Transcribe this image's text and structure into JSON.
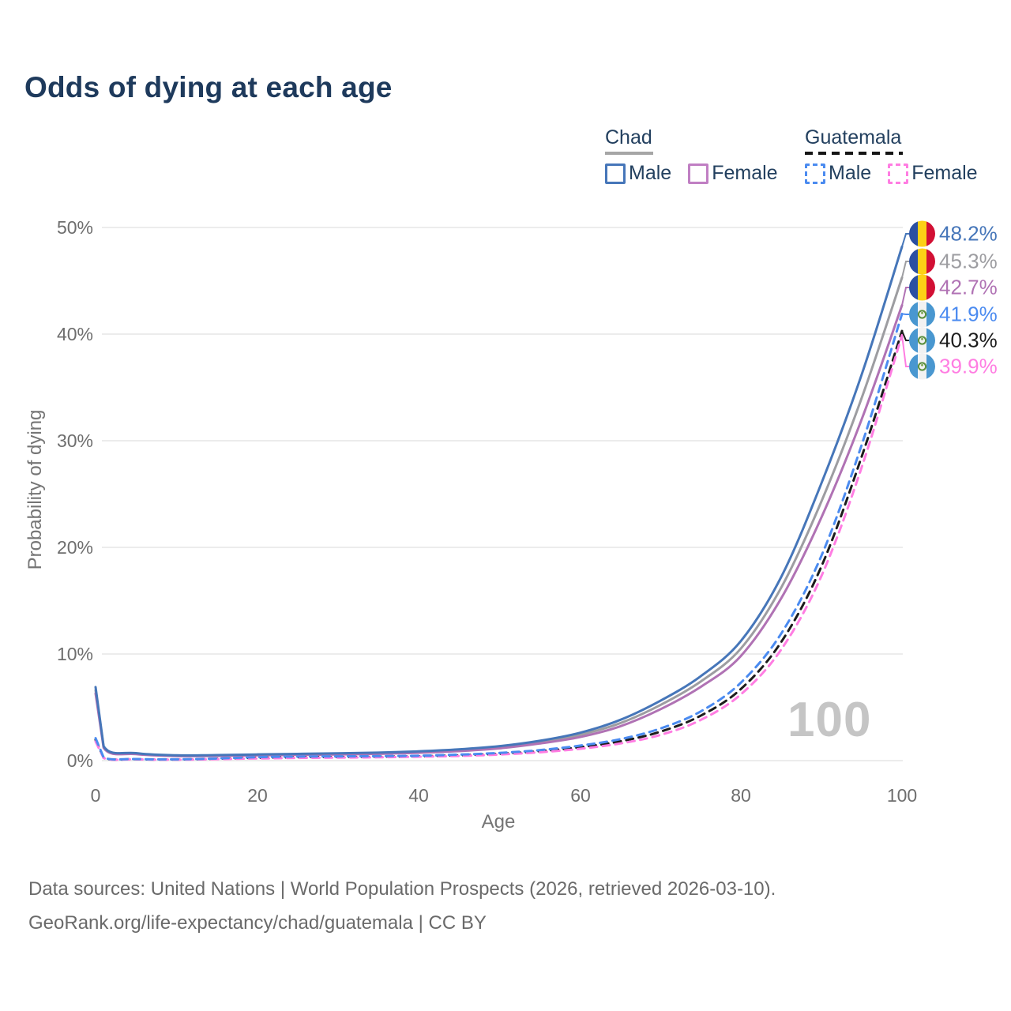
{
  "title": "Odds of dying at each age",
  "legend": {
    "groups": [
      {
        "name": "Chad",
        "line_style": "solid",
        "underline_color": "#a6a6a6",
        "items": [
          {
            "label": "Male",
            "color": "#4676b9"
          },
          {
            "label": "Female",
            "color": "#c07fc3"
          }
        ]
      },
      {
        "name": "Guatemala",
        "line_style": "dashed",
        "underline_color": "#151515",
        "items": [
          {
            "label": "Male",
            "color": "#4b8bf0"
          },
          {
            "label": "Female",
            "color": "#ff7de2"
          }
        ]
      }
    ]
  },
  "axes": {
    "x": {
      "title": "Age",
      "tick_labels": [
        "0",
        "20",
        "40",
        "60",
        "80",
        "100"
      ],
      "tick_values": [
        0,
        20,
        40,
        60,
        80,
        100
      ]
    },
    "y": {
      "title": "Probability of dying",
      "tick_labels": [
        "50%",
        "40%",
        "30%",
        "20%",
        "10%",
        "0%"
      ],
      "tick_values": [
        50,
        40,
        30,
        20,
        10,
        0
      ]
    }
  },
  "watermark": "100",
  "footer": {
    "line1": "Data sources: United Nations | World Population Prospects (2026, retrieved 2026-03-10).",
    "line2": "GeoRank.org/life-expectancy/chad/guatemala | CC BY"
  },
  "chart_data": {
    "type": "line",
    "title": "Odds of dying at each age",
    "xlabel": "Age",
    "ylabel": "Probability of dying",
    "xlim": [
      0,
      100
    ],
    "ylim": [
      0,
      50
    ],
    "grid": "horizontal",
    "legend_position": "top-right",
    "x": [
      0,
      1,
      5,
      10,
      15,
      20,
      25,
      30,
      35,
      40,
      45,
      50,
      55,
      60,
      65,
      70,
      75,
      80,
      85,
      90,
      95,
      100
    ],
    "series": [
      {
        "name": "Chad Male",
        "country": "Chad",
        "sex": "Male",
        "flag": "chad",
        "style": "solid",
        "color": "#4676b9",
        "end_label": "48.2%",
        "values": [
          6.9,
          1.35,
          0.7,
          0.5,
          0.52,
          0.58,
          0.63,
          0.68,
          0.75,
          0.87,
          1.05,
          1.35,
          1.85,
          2.6,
          3.8,
          5.6,
          7.9,
          11.2,
          17.2,
          26.0,
          36.2,
          48.2
        ]
      },
      {
        "name": "Chad Both sexes",
        "country": "Chad",
        "sex": "Both",
        "flag": "chad",
        "style": "solid",
        "color": "#9d9da1",
        "end_label": "45.3%",
        "values": [
          6.6,
          1.28,
          0.65,
          0.46,
          0.48,
          0.53,
          0.58,
          0.62,
          0.69,
          0.8,
          0.97,
          1.25,
          1.7,
          2.4,
          3.5,
          5.2,
          7.4,
          10.5,
          16.2,
          24.3,
          34.0,
          45.3
        ]
      },
      {
        "name": "Chad Female",
        "country": "Chad",
        "sex": "Female",
        "flag": "chad",
        "style": "solid",
        "color": "#b072b4",
        "end_label": "42.7%",
        "values": [
          6.3,
          1.2,
          0.61,
          0.43,
          0.44,
          0.49,
          0.53,
          0.57,
          0.63,
          0.73,
          0.89,
          1.15,
          1.6,
          2.2,
          3.2,
          4.8,
          6.9,
          9.8,
          15.2,
          22.8,
          32.0,
          42.7
        ]
      },
      {
        "name": "Guatemala Male",
        "country": "Guatemala",
        "sex": "Male",
        "flag": "guatemala",
        "style": "dashed",
        "color": "#4b8bf0",
        "end_label": "41.9%",
        "values": [
          2.1,
          0.3,
          0.15,
          0.12,
          0.2,
          0.32,
          0.38,
          0.4,
          0.42,
          0.46,
          0.56,
          0.72,
          0.98,
          1.4,
          2.0,
          3.0,
          4.6,
          7.3,
          11.9,
          19.2,
          29.6,
          41.9
        ]
      },
      {
        "name": "Guatemala Both sexes",
        "country": "Guatemala",
        "sex": "Both",
        "flag": "guatemala",
        "style": "dashed",
        "color": "#1c1c1c",
        "end_label": "40.3%",
        "values": [
          1.95,
          0.27,
          0.13,
          0.1,
          0.17,
          0.26,
          0.31,
          0.34,
          0.36,
          0.41,
          0.5,
          0.64,
          0.88,
          1.25,
          1.8,
          2.7,
          4.2,
          6.7,
          11.1,
          18.2,
          28.5,
          40.3
        ]
      },
      {
        "name": "Guatemala Female",
        "country": "Guatemala",
        "sex": "Female",
        "flag": "guatemala",
        "style": "dashed",
        "color": "#ff7de2",
        "end_label": "39.9%",
        "values": [
          1.8,
          0.24,
          0.12,
          0.09,
          0.14,
          0.2,
          0.25,
          0.28,
          0.31,
          0.36,
          0.44,
          0.57,
          0.78,
          1.1,
          1.6,
          2.4,
          3.8,
          6.2,
          10.4,
          17.3,
          27.5,
          39.9
        ]
      }
    ]
  }
}
